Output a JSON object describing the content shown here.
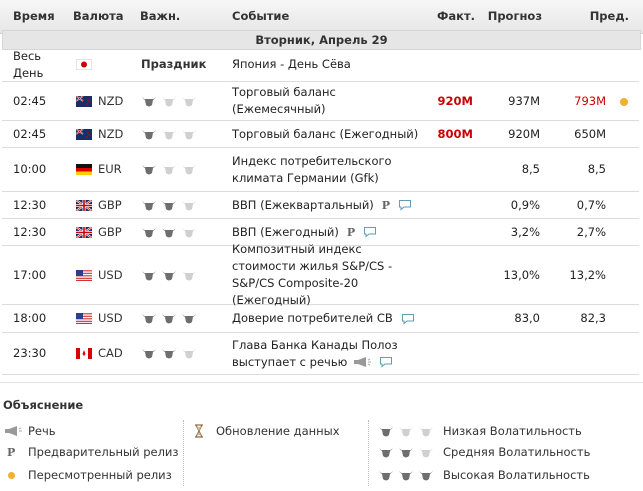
{
  "header": {
    "columns": [
      "Время",
      "Валюта",
      "Важн.",
      "Событие",
      "Факт.",
      "Прогноз",
      "Пред."
    ]
  },
  "date": "Вторник, Апрель 29",
  "highlight_color": "#cc0000",
  "preliminary_mark": "P",
  "rows": [
    {
      "time": "Весь День",
      "flag": "jp",
      "importance_label": "Праздник",
      "event": "Япония - День Сёва"
    },
    {
      "time": "02:45",
      "flag": "nz",
      "currency": "NZD",
      "importance": 1,
      "event": "Торговый баланс (Ежемесячный)",
      "actual": "920M",
      "forecast": "937M",
      "previous": "793M",
      "revised": true
    },
    {
      "time": "02:45",
      "flag": "nz",
      "currency": "NZD",
      "importance": 1,
      "event": "Торговый баланс (Ежегодный)",
      "actual": "800M",
      "forecast": "920M",
      "previous": "650M"
    },
    {
      "time": "10:00",
      "flag": "de",
      "currency": "EUR",
      "importance": 1,
      "event": "Индекс потребительского климата Германии (Gfk)",
      "forecast": "8,5",
      "previous": "8,5"
    },
    {
      "time": "12:30",
      "flag": "gb",
      "currency": "GBP",
      "importance": 2,
      "event": "ВВП (Ежеквартальный)",
      "preliminary": true,
      "comment": true,
      "forecast": "0,9%",
      "previous": "0,7%"
    },
    {
      "time": "12:30",
      "flag": "gb",
      "currency": "GBP",
      "importance": 2,
      "event": "ВВП (Ежегодный)",
      "preliminary": true,
      "comment": true,
      "forecast": "3,2%",
      "previous": "2,7%"
    },
    {
      "time": "17:00",
      "flag": "us",
      "currency": "USD",
      "importance": 2,
      "event": "Композитный индекс стоимости жилья S&P/CS - S&P/CS Composite-20 (Ежегодный)",
      "forecast": "13,0%",
      "previous": "13,2%"
    },
    {
      "time": "18:00",
      "flag": "us",
      "currency": "USD",
      "importance": 3,
      "event": "Доверие потребителей CB",
      "comment": true,
      "forecast": "83,0",
      "previous": "82,3"
    },
    {
      "time": "23:30",
      "flag": "ca",
      "currency": "CAD",
      "importance": 2,
      "event": "Глава Банка Канады Полоз выступает с речью",
      "speech": true,
      "comment": true
    }
  ],
  "legend": {
    "title": "Объяснение",
    "items": [
      {
        "icon": "speech",
        "label": "Речь"
      },
      {
        "icon": "preliminary",
        "label": "Предварительный релиз"
      },
      {
        "icon": "revised",
        "label": "Пересмотренный релиз"
      },
      {
        "icon": "hourglass",
        "label": "Обновление данных"
      },
      {
        "icon": "bulls",
        "level": 1,
        "label": "Низкая Волатильность"
      },
      {
        "icon": "bulls",
        "level": 2,
        "label": "Средняя Волатильность"
      },
      {
        "icon": "bulls",
        "level": 3,
        "label": "Высокая Волатильность"
      }
    ]
  }
}
